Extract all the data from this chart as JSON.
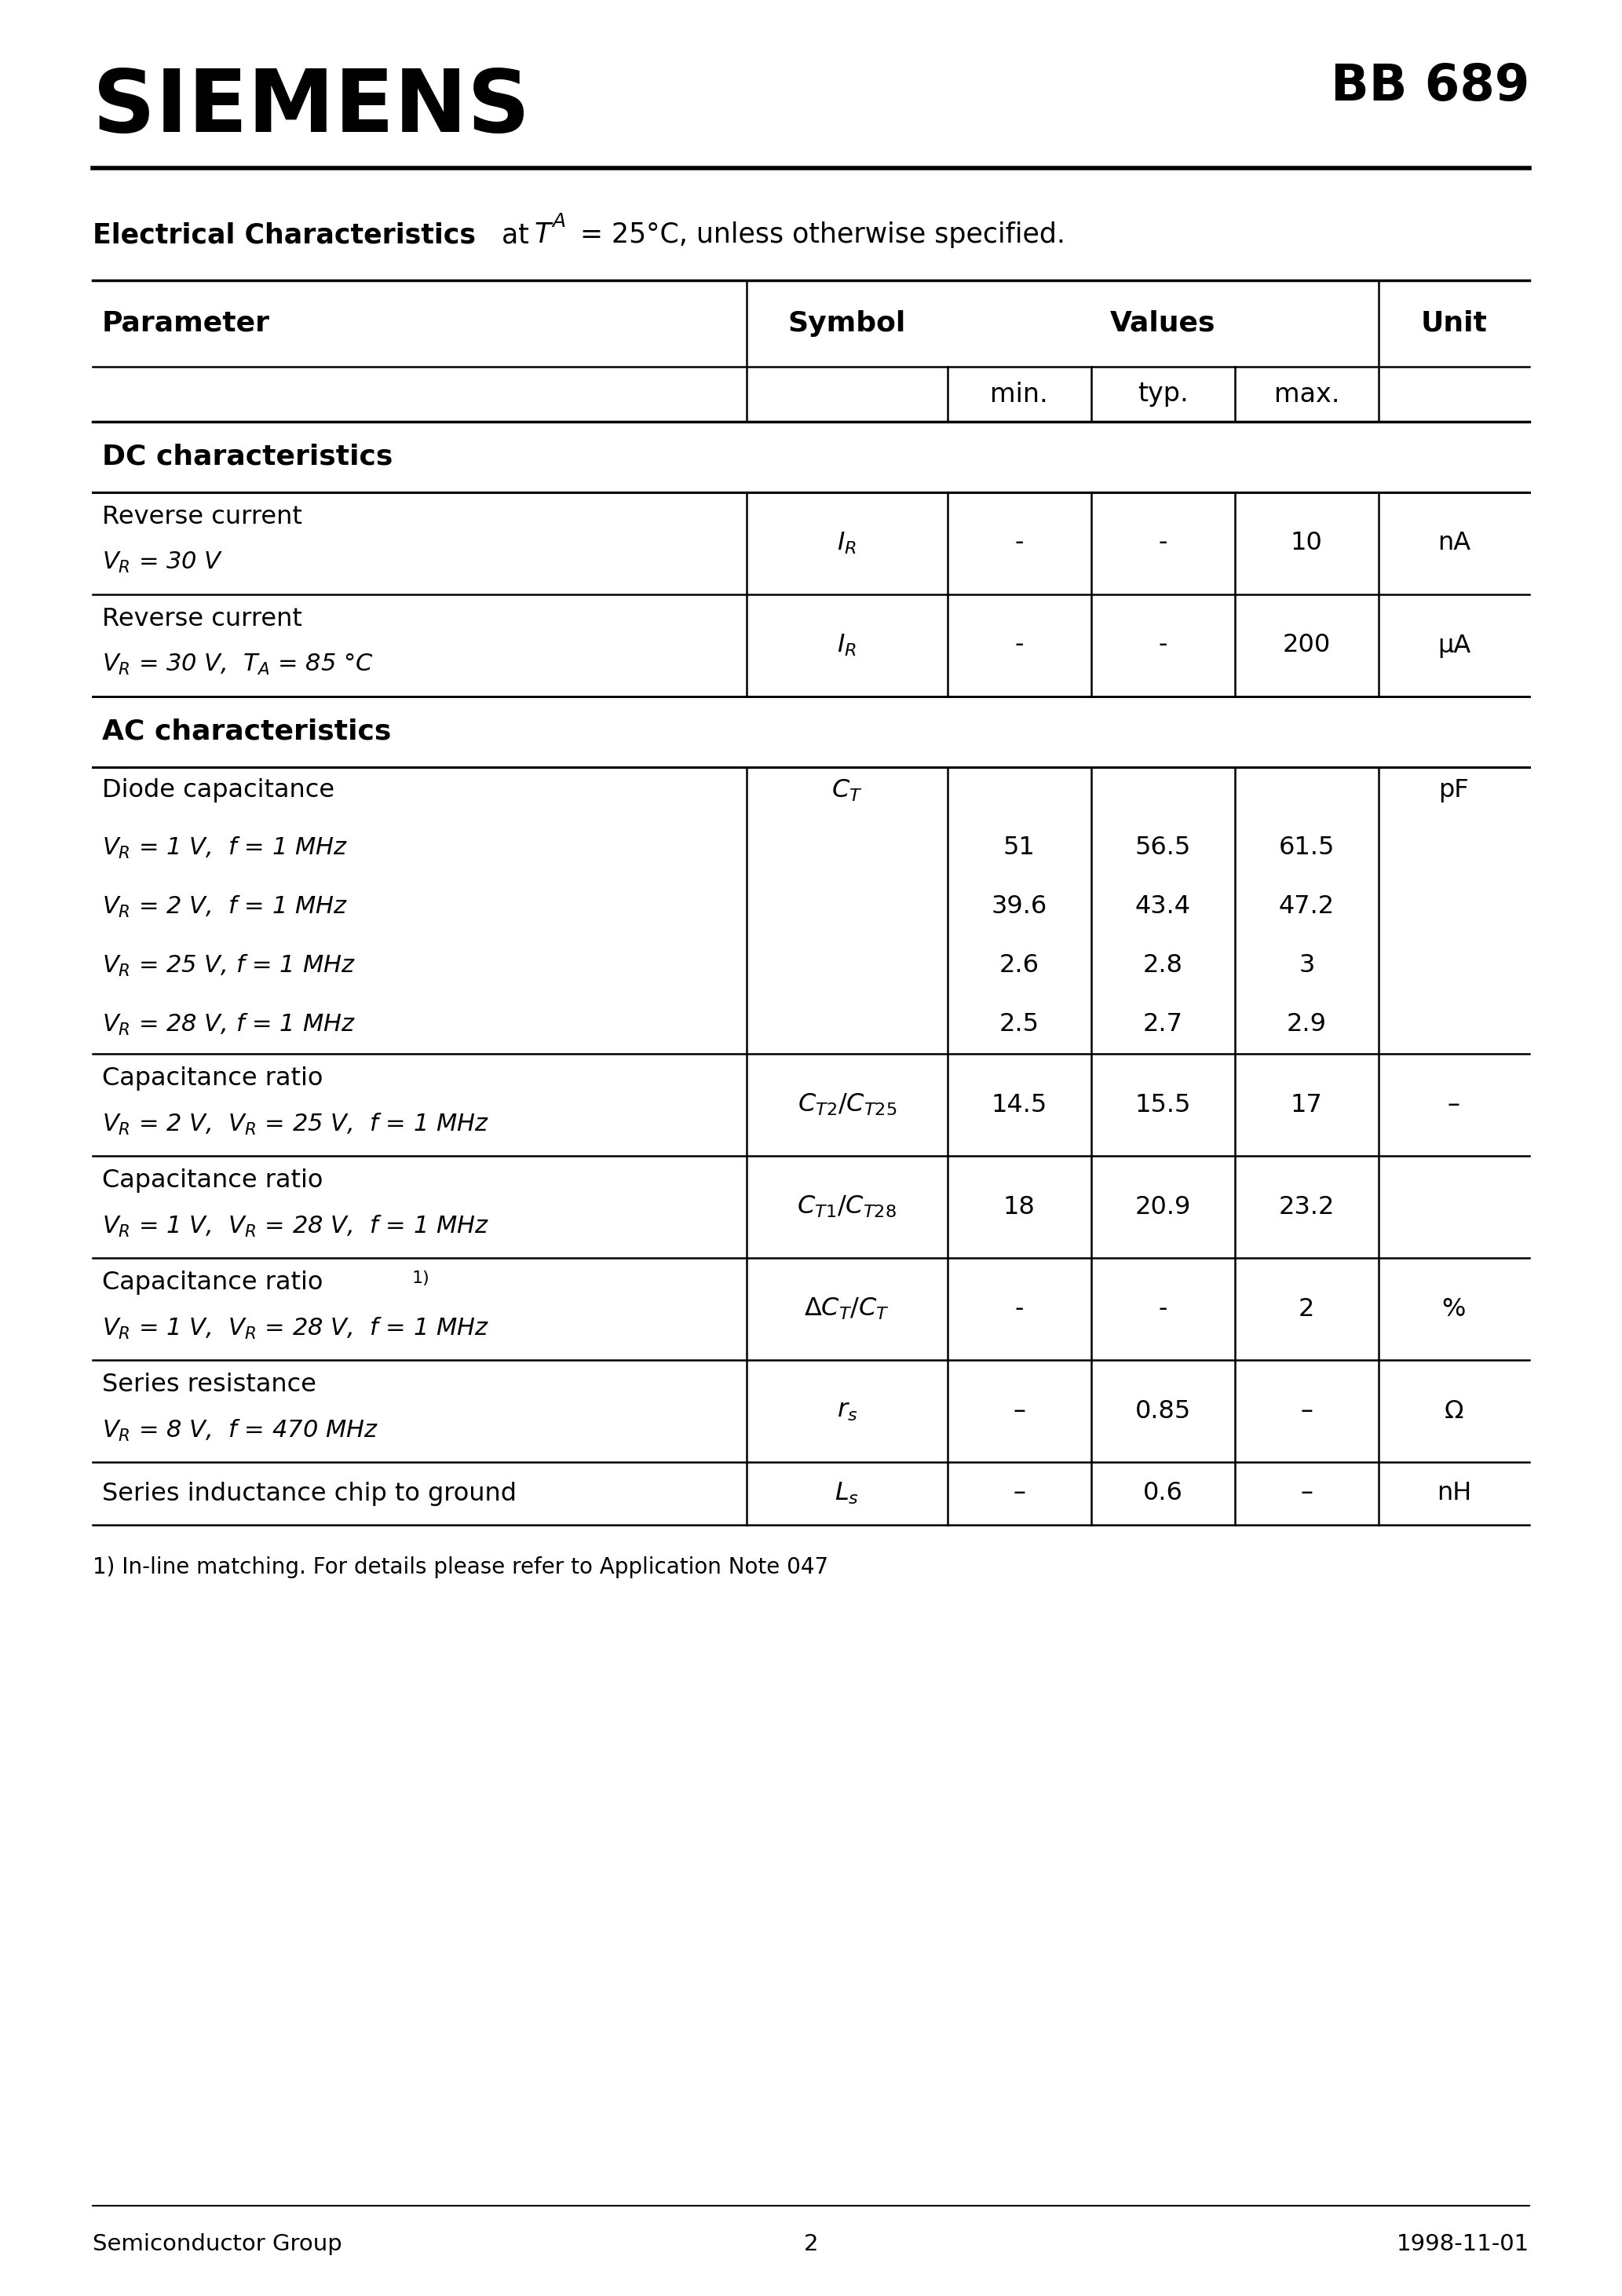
{
  "page_bg": "#ffffff",
  "company": "SIEMENS",
  "part_number": "BB 689",
  "footer_left": "Semiconductor Group",
  "footer_center": "2",
  "footer_right": "1998-11-01",
  "footnote": "1) In-line matching. For details please refer to Application Note 047"
}
